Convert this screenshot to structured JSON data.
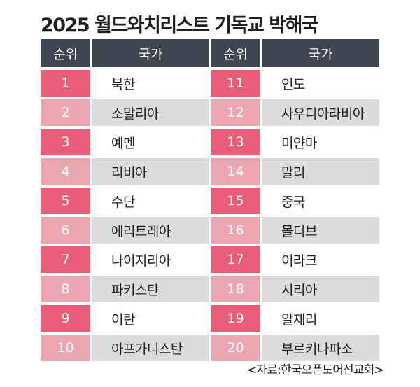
{
  "title": "2025 월드와치리스트 기독교 박해국",
  "header": {
    "rank": "순위",
    "country": "국가"
  },
  "rows": [
    {
      "left": {
        "rank": "1",
        "country": "북한"
      },
      "right": {
        "rank": "11",
        "country": "인도"
      }
    },
    {
      "left": {
        "rank": "2",
        "country": "소말리아"
      },
      "right": {
        "rank": "12",
        "country": "사우디아라비아"
      }
    },
    {
      "left": {
        "rank": "3",
        "country": "예멘"
      },
      "right": {
        "rank": "13",
        "country": "미얀마"
      }
    },
    {
      "left": {
        "rank": "4",
        "country": "리비아"
      },
      "right": {
        "rank": "14",
        "country": "말리"
      }
    },
    {
      "left": {
        "rank": "5",
        "country": "수단"
      },
      "right": {
        "rank": "15",
        "country": "중국"
      }
    },
    {
      "left": {
        "rank": "6",
        "country": "에리트레아"
      },
      "right": {
        "rank": "16",
        "country": "몰디브"
      }
    },
    {
      "left": {
        "rank": "7",
        "country": "나이지리아"
      },
      "right": {
        "rank": "17",
        "country": "이라크"
      }
    },
    {
      "left": {
        "rank": "8",
        "country": "파키스탄"
      },
      "right": {
        "rank": "18",
        "country": "시리아"
      }
    },
    {
      "left": {
        "rank": "9",
        "country": "이란"
      },
      "right": {
        "rank": "19",
        "country": "알제리"
      }
    },
    {
      "left": {
        "rank": "10",
        "country": "아프가니스탄"
      },
      "right": {
        "rank": "20",
        "country": "부르키나파소"
      }
    }
  ],
  "source": "<자료:한국오픈도어선교회>",
  "colors": {
    "header_bg": "#404650",
    "rank_odd": "#ea5d79",
    "rank_even": "#eba7b1",
    "row_even_bg": "#dcdcdc"
  }
}
